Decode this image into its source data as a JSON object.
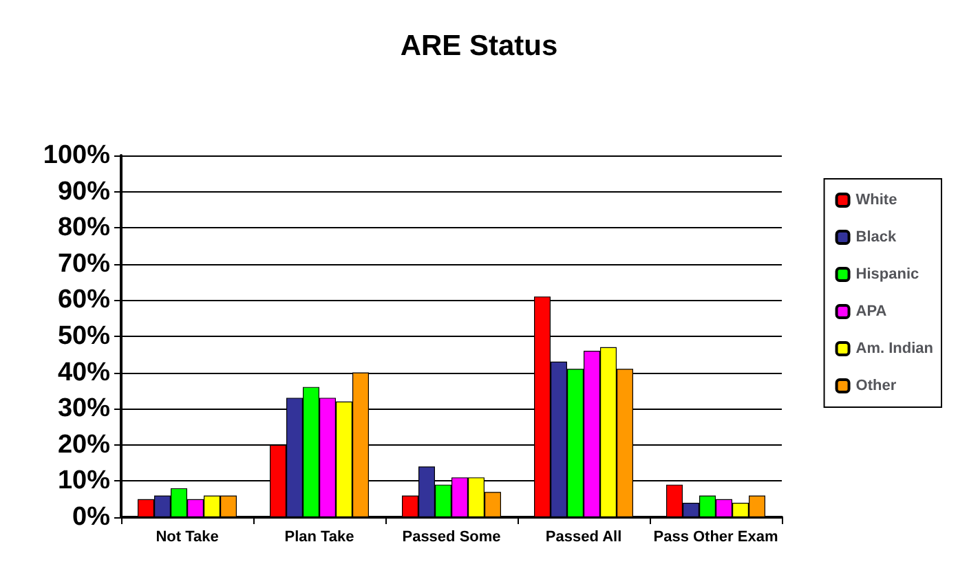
{
  "chart_data": {
    "type": "bar",
    "title": "ARE Status",
    "categories": [
      "Not Take",
      "Plan Take",
      "Passed Some",
      "Passed All",
      "Pass Other Exam"
    ],
    "series": [
      {
        "name": "White",
        "color": "#ff0000",
        "values": [
          5,
          20,
          6,
          61,
          9
        ]
      },
      {
        "name": "Black",
        "color": "#333399",
        "values": [
          6,
          33,
          14,
          43,
          4
        ]
      },
      {
        "name": "Hispanic",
        "color": "#00ff00",
        "values": [
          8,
          36,
          9,
          41,
          6
        ]
      },
      {
        "name": "APA",
        "color": "#ff00ff",
        "values": [
          5,
          33,
          11,
          46,
          5
        ]
      },
      {
        "name": "Am. Indian",
        "color": "#ffff00",
        "values": [
          6,
          32,
          11,
          47,
          4
        ]
      },
      {
        "name": "Other",
        "color": "#ff9900",
        "values": [
          6,
          40,
          7,
          41,
          6
        ]
      }
    ],
    "ylim": [
      0,
      100
    ],
    "yticks": [
      {
        "value": 0,
        "label": "0%"
      },
      {
        "value": 10,
        "label": "10%"
      },
      {
        "value": 20,
        "label": "20%"
      },
      {
        "value": 30,
        "label": "30%"
      },
      {
        "value": 40,
        "label": "40%"
      },
      {
        "value": 50,
        "label": "50%"
      },
      {
        "value": 60,
        "label": "60%"
      },
      {
        "value": 70,
        "label": "70%"
      },
      {
        "value": 80,
        "label": "80%"
      },
      {
        "value": 90,
        "label": "90%"
      },
      {
        "value": 100,
        "label": "100%"
      }
    ],
    "grid": "y",
    "legend": "right"
  }
}
